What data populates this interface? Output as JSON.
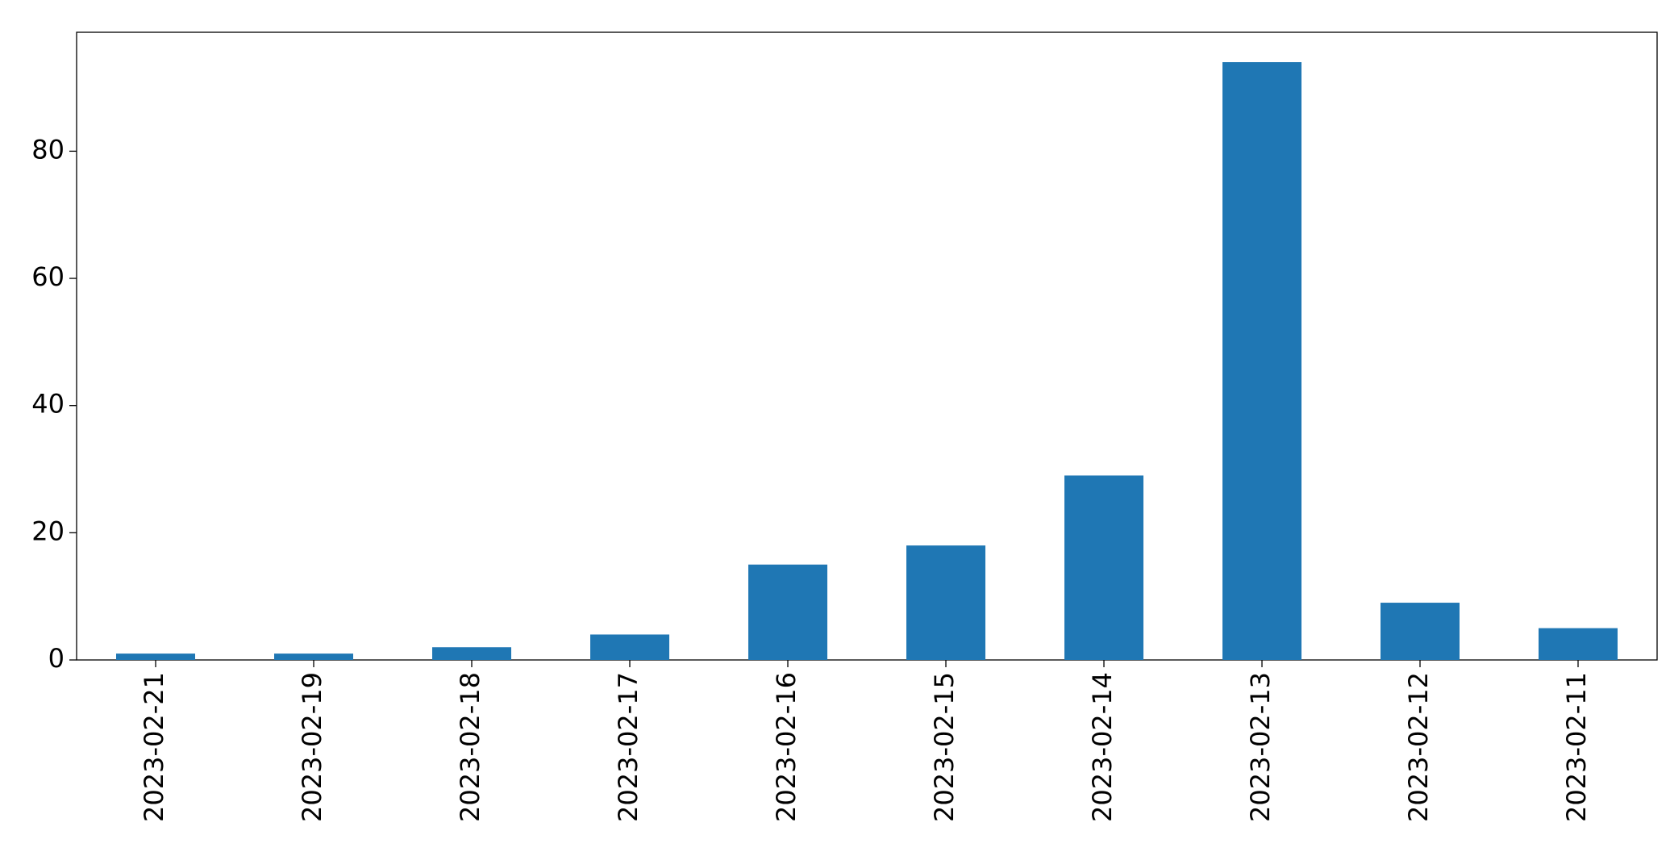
{
  "chart_data": {
    "type": "bar",
    "categories": [
      "2023-02-21",
      "2023-02-19",
      "2023-02-18",
      "2023-02-17",
      "2023-02-16",
      "2023-02-15",
      "2023-02-14",
      "2023-02-13",
      "2023-02-12",
      "2023-02-11"
    ],
    "values": [
      1,
      1,
      2,
      4,
      15,
      18,
      29,
      94,
      9,
      5
    ],
    "color": "#1f77b4",
    "ylim": [
      0,
      98.7
    ],
    "yticks": [
      0,
      20,
      40,
      60,
      80
    ],
    "grid": false
  }
}
